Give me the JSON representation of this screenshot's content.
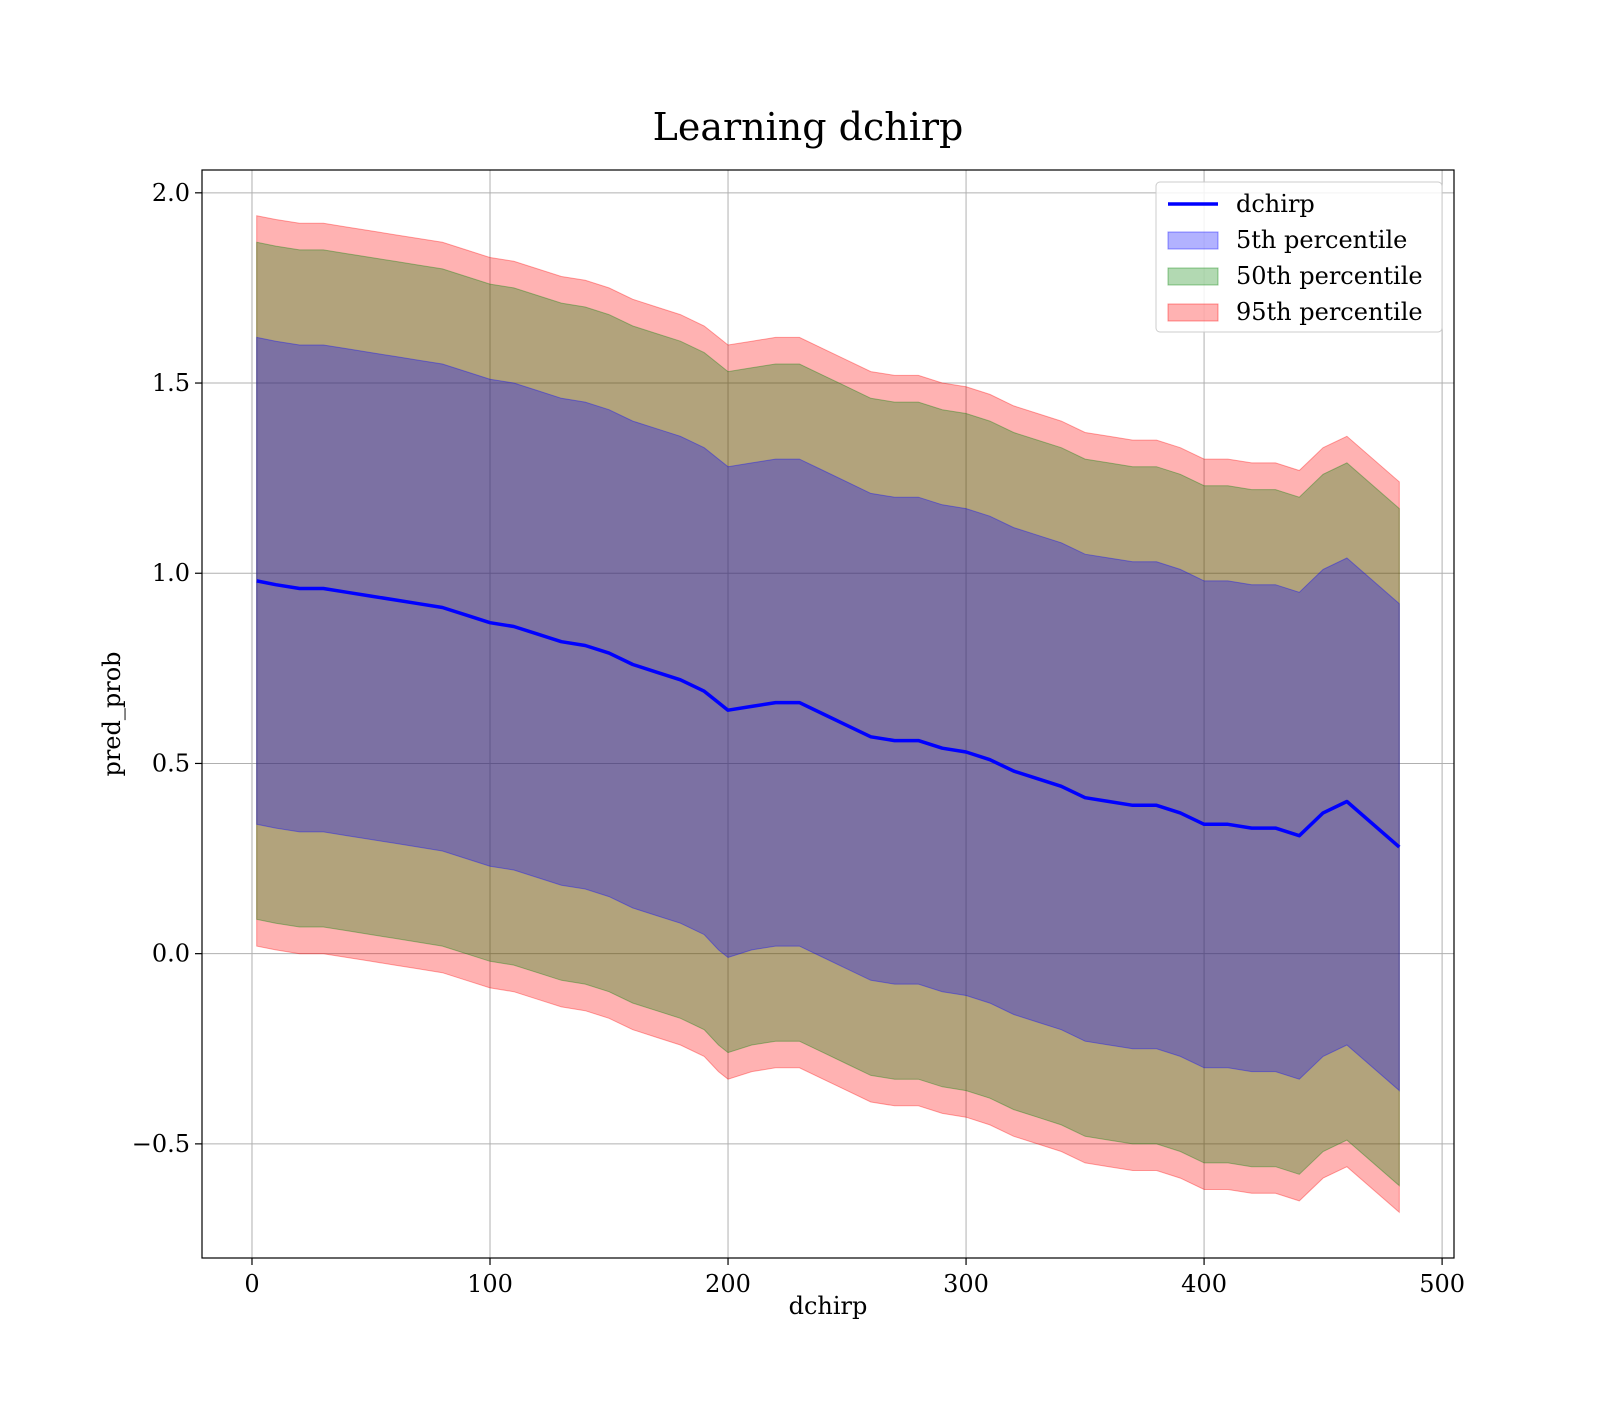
{
  "chart_data": {
    "type": "area",
    "title": "Learning dchirp",
    "xlabel": "dchirp",
    "ylabel": "pred_prob",
    "xlim": [
      -21,
      505
    ],
    "ylim": [
      -0.8,
      2.06
    ],
    "xticks": [
      0,
      100,
      200,
      300,
      400,
      500
    ],
    "yticks": [
      -0.5,
      0.0,
      0.5,
      1.0,
      1.5,
      2.0
    ],
    "ytick_labels": [
      "−0.5",
      "0.0",
      "0.5",
      "1.0",
      "1.5",
      "2.0"
    ],
    "grid": true,
    "legend_position": "upper right",
    "x": [
      2,
      10,
      20,
      30,
      40,
      50,
      60,
      70,
      80,
      90,
      100,
      110,
      120,
      130,
      140,
      150,
      160,
      170,
      180,
      190,
      196,
      200,
      210,
      220,
      230,
      240,
      250,
      260,
      270,
      280,
      290,
      300,
      310,
      320,
      330,
      340,
      350,
      360,
      370,
      380,
      390,
      400,
      410,
      420,
      430,
      440,
      450,
      460,
      482
    ],
    "series": [
      {
        "name": "dchirp",
        "kind": "line",
        "color": "#0000ff",
        "values": [
          0.98,
          0.97,
          0.96,
          0.96,
          0.95,
          0.94,
          0.93,
          0.92,
          0.91,
          0.89,
          0.87,
          0.86,
          0.84,
          0.82,
          0.81,
          0.79,
          0.76,
          0.74,
          0.72,
          0.69,
          0.66,
          0.64,
          0.65,
          0.66,
          0.66,
          0.63,
          0.6,
          0.57,
          0.56,
          0.56,
          0.54,
          0.53,
          0.51,
          0.48,
          0.46,
          0.44,
          0.41,
          0.4,
          0.39,
          0.39,
          0.37,
          0.34,
          0.34,
          0.33,
          0.33,
          0.31,
          0.37,
          0.4,
          0.28
        ]
      },
      {
        "name": "5th percentile",
        "kind": "band",
        "color": "#0000ff",
        "opacity": 0.3,
        "lower": [
          0.34,
          0.33,
          0.32,
          0.32,
          0.31,
          0.3,
          0.29,
          0.28,
          0.27,
          0.25,
          0.23,
          0.22,
          0.2,
          0.18,
          0.17,
          0.15,
          0.12,
          0.1,
          0.08,
          0.05,
          0.01,
          -0.01,
          0.01,
          0.02,
          0.02,
          -0.01,
          -0.04,
          -0.07,
          -0.08,
          -0.08,
          -0.1,
          -0.11,
          -0.13,
          -0.16,
          -0.18,
          -0.2,
          -0.23,
          -0.24,
          -0.25,
          -0.25,
          -0.27,
          -0.3,
          -0.3,
          -0.31,
          -0.31,
          -0.33,
          -0.27,
          -0.24,
          -0.36
        ],
        "upper": [
          1.62,
          1.61,
          1.6,
          1.6,
          1.59,
          1.58,
          1.57,
          1.56,
          1.55,
          1.53,
          1.51,
          1.5,
          1.48,
          1.46,
          1.45,
          1.43,
          1.4,
          1.38,
          1.36,
          1.33,
          1.3,
          1.28,
          1.29,
          1.3,
          1.3,
          1.27,
          1.24,
          1.21,
          1.2,
          1.2,
          1.18,
          1.17,
          1.15,
          1.12,
          1.1,
          1.08,
          1.05,
          1.04,
          1.03,
          1.03,
          1.01,
          0.98,
          0.98,
          0.97,
          0.97,
          0.95,
          1.01,
          1.04,
          0.92
        ]
      },
      {
        "name": "50th percentile",
        "kind": "band",
        "color": "#008000",
        "opacity": 0.3,
        "lower": [
          0.09,
          0.08,
          0.07,
          0.07,
          0.06,
          0.05,
          0.04,
          0.03,
          0.02,
          0.0,
          -0.02,
          -0.03,
          -0.05,
          -0.07,
          -0.08,
          -0.1,
          -0.13,
          -0.15,
          -0.17,
          -0.2,
          -0.24,
          -0.26,
          -0.24,
          -0.23,
          -0.23,
          -0.26,
          -0.29,
          -0.32,
          -0.33,
          -0.33,
          -0.35,
          -0.36,
          -0.38,
          -0.41,
          -0.43,
          -0.45,
          -0.48,
          -0.49,
          -0.5,
          -0.5,
          -0.52,
          -0.55,
          -0.55,
          -0.56,
          -0.56,
          -0.58,
          -0.52,
          -0.49,
          -0.61
        ],
        "upper": [
          1.87,
          1.86,
          1.85,
          1.85,
          1.84,
          1.83,
          1.82,
          1.81,
          1.8,
          1.78,
          1.76,
          1.75,
          1.73,
          1.71,
          1.7,
          1.68,
          1.65,
          1.63,
          1.61,
          1.58,
          1.55,
          1.53,
          1.54,
          1.55,
          1.55,
          1.52,
          1.49,
          1.46,
          1.45,
          1.45,
          1.43,
          1.42,
          1.4,
          1.37,
          1.35,
          1.33,
          1.3,
          1.29,
          1.28,
          1.28,
          1.26,
          1.23,
          1.23,
          1.22,
          1.22,
          1.2,
          1.26,
          1.29,
          1.17
        ]
      },
      {
        "name": "95th percentile",
        "kind": "band",
        "color": "#ff0000",
        "opacity": 0.3,
        "lower": [
          0.02,
          0.01,
          0.0,
          0.0,
          -0.01,
          -0.02,
          -0.03,
          -0.04,
          -0.05,
          -0.07,
          -0.09,
          -0.1,
          -0.12,
          -0.14,
          -0.15,
          -0.17,
          -0.2,
          -0.22,
          -0.24,
          -0.27,
          -0.31,
          -0.33,
          -0.31,
          -0.3,
          -0.3,
          -0.33,
          -0.36,
          -0.39,
          -0.4,
          -0.4,
          -0.42,
          -0.43,
          -0.45,
          -0.48,
          -0.5,
          -0.52,
          -0.55,
          -0.56,
          -0.57,
          -0.57,
          -0.59,
          -0.62,
          -0.62,
          -0.63,
          -0.63,
          -0.65,
          -0.59,
          -0.56,
          -0.68
        ],
        "upper": [
          1.94,
          1.93,
          1.92,
          1.92,
          1.91,
          1.9,
          1.89,
          1.88,
          1.87,
          1.85,
          1.83,
          1.82,
          1.8,
          1.78,
          1.77,
          1.75,
          1.72,
          1.7,
          1.68,
          1.65,
          1.62,
          1.6,
          1.61,
          1.62,
          1.62,
          1.59,
          1.56,
          1.53,
          1.52,
          1.52,
          1.5,
          1.49,
          1.47,
          1.44,
          1.42,
          1.4,
          1.37,
          1.36,
          1.35,
          1.35,
          1.33,
          1.3,
          1.3,
          1.29,
          1.29,
          1.27,
          1.33,
          1.36,
          1.24
        ]
      }
    ]
  }
}
